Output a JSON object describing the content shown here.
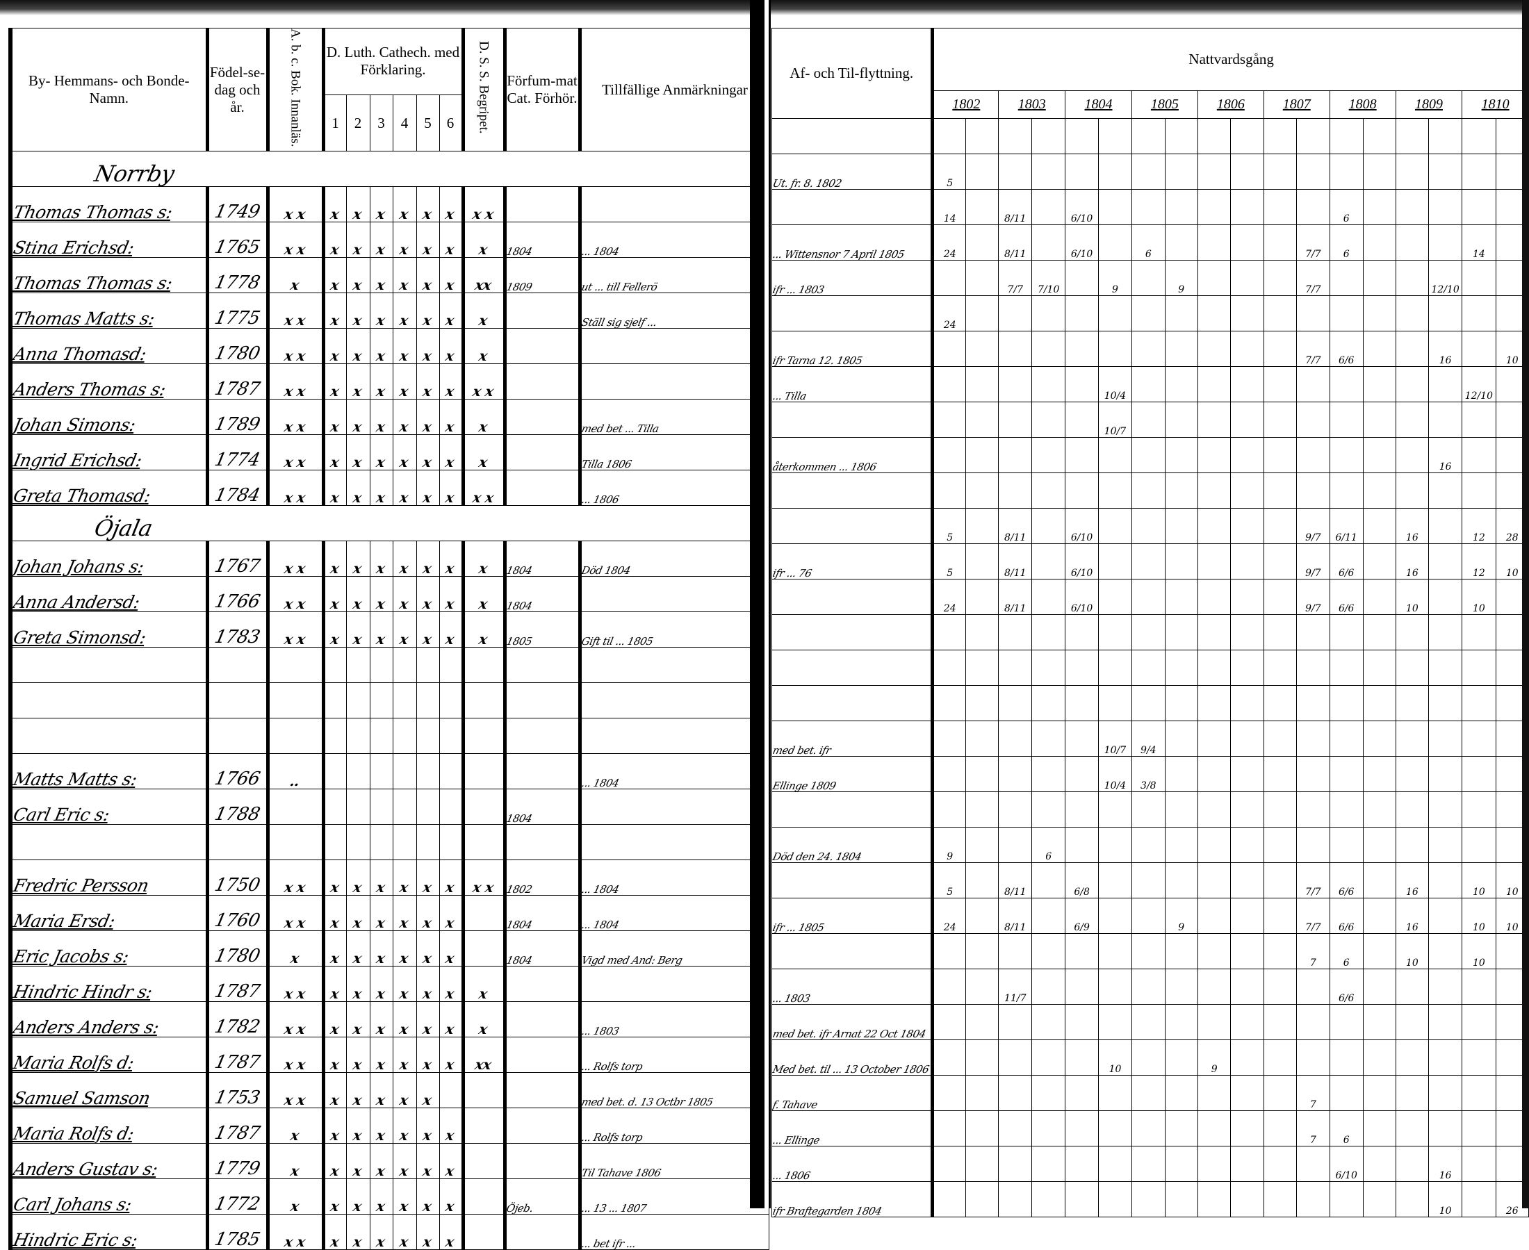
{
  "left_page": {
    "headers": {
      "name": "By- Hemmans- och Bonde-Namn.",
      "birth": "Födel-se-dag och år.",
      "abc": "A. b. c. Bok. Innanläs.",
      "catech": "D. Luth. Cathech. med Förklaring.",
      "catech_parts": [
        "1",
        "2",
        "3",
        "4",
        "5",
        "6"
      ],
      "dss": "D. S. S. Begripet.",
      "forfum": "Förfum-mat Cat. Förhör.",
      "notes": "Tillfällige Anmärkningar"
    }
  },
  "right_page": {
    "headers": {
      "moves": "Af- och Til-flyttning.",
      "communion": "Nattvardsgång",
      "years": [
        "1802",
        "1803",
        "1804",
        "1805",
        "1806",
        "1807",
        "1808",
        "1809",
        "1810"
      ]
    }
  },
  "rows": [
    {
      "section": "Norrby"
    },
    {
      "name": "Thomas Thomas s:",
      "birth": "1749",
      "abc": "x x",
      "catech": "xxxxxx",
      "dss": "x x",
      "flytt": "Ut. fr. 8. 1802",
      "comm": {
        "0": "5"
      }
    },
    {
      "name": "Stina Erichsd:",
      "birth": "1765",
      "abc": "x x",
      "catech": "xxxxxx",
      "dss": "x",
      "forfum": "1804",
      "anm": "... 1804",
      "comm": {
        "0": "14",
        "2": "8/11",
        "4": "6/10",
        "12": "6"
      }
    },
    {
      "name": "Thomas Thomas s:",
      "birth": "1778",
      "abc": "x",
      "catech": "xxxxxx",
      "dss": "xx",
      "forfum": "1809",
      "anm": "ut ... till Fellerö",
      "flytt": "... Wittensnor 7 April 1805",
      "comm": {
        "0": "24",
        "2": "8/11",
        "4": "6/10",
        "6": "6",
        "11": "7/7",
        "12": "6",
        "16": "14"
      }
    },
    {
      "name": "Thomas Matts s:",
      "birth": "1775",
      "abc": "x x",
      "catech": "xxxxxx",
      "dss": "x",
      "anm": "Ställ sig sjelf ...",
      "flytt": "ifr ... 1803",
      "comm": {
        "2": "7/7",
        "3": "7/10",
        "5": "9",
        "7": "9",
        "11": "7/7",
        "15": "12/10"
      }
    },
    {
      "name": "Anna Thomasd:",
      "birth": "1780",
      "abc": "x x",
      "catech": "xxxxxx",
      "dss": "x",
      "comm": {
        "0": "24"
      }
    },
    {
      "name": "Anders Thomas s:",
      "birth": "1787",
      "abc": "x x",
      "catech": "xxxxxx",
      "dss": "x x",
      "flytt": "ifr Tarna 12. 1805",
      "comm": {
        "11": "7/7",
        "12": "6/6",
        "15": "16",
        "17": "10"
      }
    },
    {
      "name": "Johan Simons:",
      "birth": "1789",
      "abc": "x x",
      "catech": "xxxxxx",
      "dss": "x",
      "anm": "med bet ... Tilla",
      "flytt": "... Tilla",
      "comm": {
        "5": "10/4",
        "16": "12/10"
      }
    },
    {
      "name": "Ingrid Erichsd:",
      "birth": "1774",
      "abc": "x x",
      "catech": "xxxxxx",
      "dss": "x",
      "anm": "Tilla 1806",
      "comm": {
        "5": "10/7"
      }
    },
    {
      "name": "Greta Thomasd:",
      "birth": "1784",
      "abc": "x x",
      "catech": "xxxxxx",
      "dss": "x x",
      "anm": "... 1806",
      "flytt": "återkommen ... 1806",
      "comm": {
        "15": "16"
      }
    },
    {
      "section": "Öjala"
    },
    {
      "name": "Johan Johans s:",
      "birth": "1767",
      "abc": "x x",
      "catech": "xxxxxx",
      "dss": "x",
      "forfum": "1804",
      "anm": "Död 1804",
      "comm": {
        "0": "5",
        "2": "8/11",
        "4": "6/10",
        "11": "9/7",
        "12": "6/11",
        "14": "16",
        "16": "12",
        "17": "28"
      }
    },
    {
      "name": "Anna Andersd:",
      "birth": "1766",
      "abc": "x x",
      "catech": "xxxxxx",
      "dss": "x",
      "forfum": "1804",
      "flytt": "ifr ... 76",
      "comm": {
        "0": "5",
        "2": "8/11",
        "4": "6/10",
        "11": "9/7",
        "12": "6/6",
        "14": "16",
        "16": "12",
        "17": "10"
      }
    },
    {
      "name": "Greta Simonsd:",
      "birth": "1783",
      "abc": "x x",
      "catech": "xxxxxx",
      "dss": "x",
      "forfum": "1805",
      "anm": "Gift til ... 1805",
      "comm": {
        "0": "24",
        "2": "8/11",
        "4": "6/10",
        "11": "9/7",
        "12": "6/6",
        "14": "10",
        "16": "10"
      }
    },
    {},
    {},
    {},
    {
      "name": "Matts Matts s:",
      "birth": "1766",
      "abc": "..",
      "anm": "... 1804",
      "flytt": "med bet. ifr",
      "comm": {
        "5": "10/7",
        "6": "9/4"
      }
    },
    {
      "name": "Carl Eric s:",
      "birth": "1788",
      "forfum": "1804",
      "flytt": "Ellinge 1809",
      "comm": {
        "5": "10/4",
        "6": "3/8"
      }
    },
    {},
    {
      "name": "Fredric Persson",
      "birth": "1750",
      "abc": "x x",
      "catech": "xxxxxx",
      "dss": "x x",
      "forfum": "1802",
      "anm": "... 1804",
      "flytt": "Död den 24. 1804",
      "comm": {
        "0": "9",
        "3": "6"
      }
    },
    {
      "name": "Maria Ersd:",
      "birth": "1760",
      "abc": "x x",
      "catech": "xxxxxx",
      "forfum": "1804",
      "anm": "... 1804",
      "comm": {
        "0": "5",
        "2": "8/11",
        "4": "6/8",
        "11": "7/7",
        "12": "6/6",
        "14": "16",
        "16": "10",
        "17": "10"
      }
    },
    {
      "name": "Eric Jacobs s:",
      "birth": "1780",
      "abc": "x",
      "catech": "xxxxxx",
      "forfum": "1804",
      "anm": "Vigd med And: Berg",
      "flytt": "ifr ... 1805",
      "comm": {
        "0": "24",
        "2": "8/11",
        "4": "6/9",
        "7": "9",
        "11": "7/7",
        "12": "6/6",
        "14": "16",
        "16": "10",
        "17": "10"
      }
    },
    {
      "name": "Hindric Hindr s:",
      "birth": "1787",
      "abc": "x x",
      "catech": "xxxxxx",
      "dss": "x",
      "comm": {
        "11": "7",
        "12": "6",
        "14": "10",
        "16": "10"
      }
    },
    {
      "name": "Anders Anders s:",
      "birth": "1782",
      "abc": "x x",
      "catech": "xxxxxx",
      "dss": "x",
      "anm": "... 1803",
      "flytt": "... 1803",
      "comm": {
        "2": "11/7",
        "12": "6/6"
      }
    },
    {
      "name": "Maria Rolfs d:",
      "birth": "1787",
      "abc": "x x",
      "catech": "xxxxxx",
      "dss": "xx",
      "anm": "... Rolfs torp",
      "flytt": "med bet. ifr Arnat 22 Oct 1804"
    },
    {
      "name": "Samuel Samson",
      "birth": "1753",
      "abc": "x x",
      "catech": "xxxxx",
      "anm": "med bet. d. 13 Octbr 1805",
      "flytt": "Med bet. til ... 13 October 1806",
      "comm": {
        "5": "10",
        "8": "9"
      }
    },
    {
      "name": "Maria Rolfs d:",
      "birth": "1787",
      "abc": "x",
      "catech": "xxxxxx",
      "anm": "... Rolfs torp",
      "flytt": "f. Tahave",
      "comm": {
        "11": "7"
      }
    },
    {
      "name": "Anders Gustav s:",
      "birth": "1779",
      "abc": "x",
      "catech": "xxxxxx",
      "anm": "Til Tahave 1806",
      "flytt": "... Ellinge",
      "comm": {
        "11": "7",
        "12": "6"
      }
    },
    {
      "name": "Carl Johans s:",
      "birth": "1772",
      "abc": "x",
      "catech": "xxxxxx",
      "forfum": "Öjeb.",
      "anm": "... 13 ... 1807",
      "flytt": "... 1806",
      "comm": {
        "12": "6/10",
        "15": "16"
      }
    },
    {
      "name": "Hindric Eric s:",
      "birth": "1785",
      "abc": "x x",
      "catech": "xxxxxx",
      "anm": "... bet ifr ...",
      "flytt": "ifr Braftegarden 1804",
      "comm": {
        "15": "10",
        "17": "26"
      }
    }
  ]
}
